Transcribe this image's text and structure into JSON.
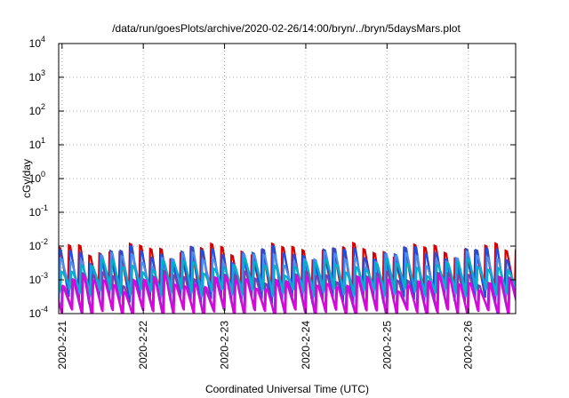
{
  "chart_data": {
    "type": "line",
    "title": "/data/run/goesPlots/archive/2020-02-26/14:00/bryn/../bryn/5daysMars.plot",
    "xlabel": "Coordinated Universal Time (UTC)",
    "ylabel": "cGy/day",
    "y_scale": "log",
    "ylim": [
      0.0001,
      10000
    ],
    "xlim": [
      "2020-02-20T23:00",
      "2020-02-26T14:00"
    ],
    "grid": true,
    "y_ticks": [
      {
        "value": 0.0001,
        "base": "10",
        "exp": "-4"
      },
      {
        "value": 0.001,
        "base": "10",
        "exp": "-3"
      },
      {
        "value": 0.01,
        "base": "10",
        "exp": "-2"
      },
      {
        "value": 0.1,
        "base": "10",
        "exp": "-1"
      },
      {
        "value": 1,
        "base": "10",
        "exp": "0"
      },
      {
        "value": 10,
        "base": "10",
        "exp": "1"
      },
      {
        "value": 100,
        "base": "10",
        "exp": "2"
      },
      {
        "value": 1000,
        "base": "10",
        "exp": "3"
      },
      {
        "value": 10000,
        "base": "10",
        "exp": "4"
      }
    ],
    "x_ticks": [
      {
        "value": "2020-02-21T00:00",
        "label": "2020-2-21"
      },
      {
        "value": "2020-02-22T00:00",
        "label": "2020-2-22"
      },
      {
        "value": "2020-02-23T00:00",
        "label": "2020-2-23"
      },
      {
        "value": "2020-02-24T00:00",
        "label": "2020-2-24"
      },
      {
        "value": "2020-02-25T00:00",
        "label": "2020-2-25"
      },
      {
        "value": "2020-02-26T00:00",
        "label": "2020-2-26"
      }
    ],
    "cycle_hours": 3,
    "series": [
      {
        "color": "#d40000",
        "peak": 0.008,
        "trough": 0.00035
      },
      {
        "color": "#1f4fe0",
        "peak": 0.0065,
        "trough": 0.00025
      },
      {
        "color": "#4a8ef0",
        "peak": 0.0045,
        "trough": 0.0004
      },
      {
        "color": "#00b0c8",
        "peak": 0.0028,
        "trough": 0.00045
      },
      {
        "color": "#7b3fb0",
        "peak": 0.0012,
        "trough": 0.00011
      },
      {
        "color": "#e000e0",
        "peak": 0.0009,
        "trough": 0.0001
      }
    ]
  }
}
